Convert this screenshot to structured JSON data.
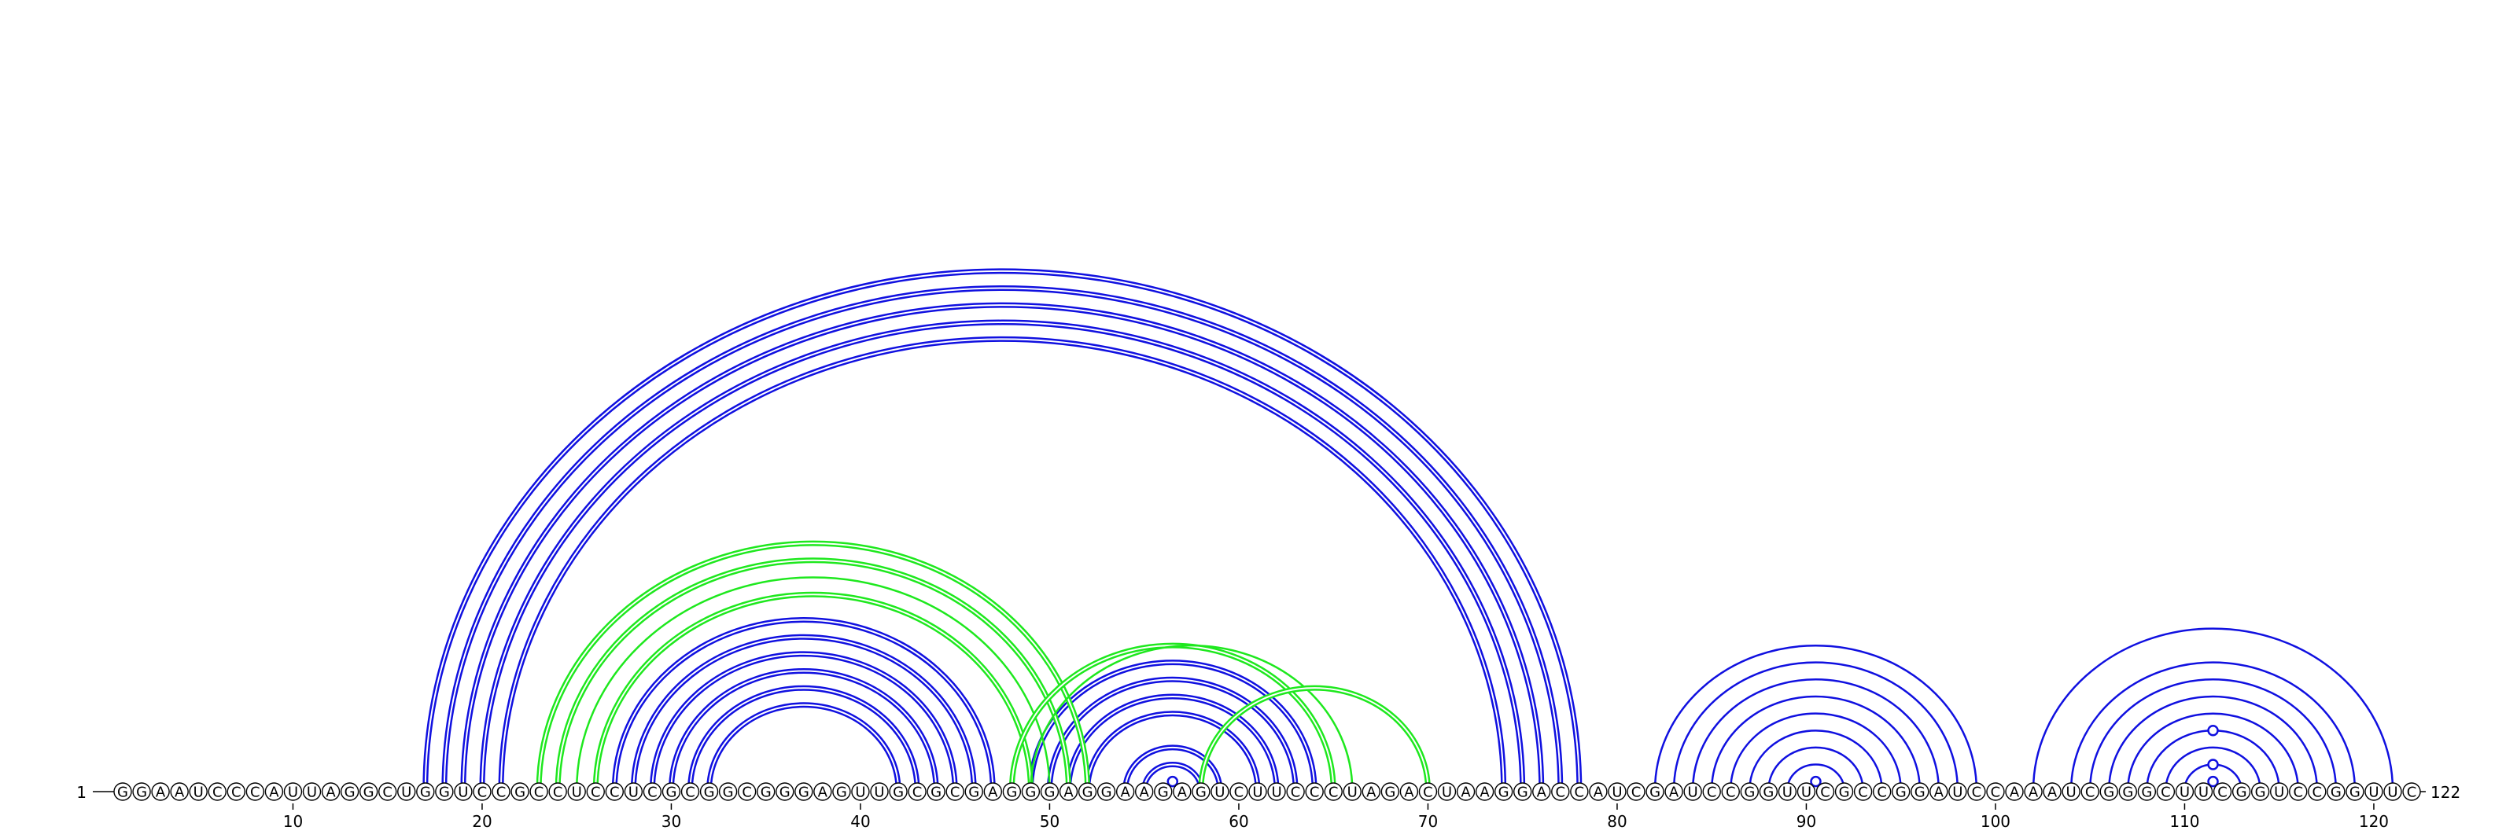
{
  "chart_data": {
    "type": "arc-diagram",
    "sequence": "GGAAUCCCAUUAGGCUGGUCCGCCUCCUCGCGGCGGGAGUUGCGCGAGGGAGGAAGAGUCUUCCCUAGACUAAGGACCAUCGAUCCGGUUCGCCGGAUCCAAAUCGGGCUUCGGUCCGGUUC",
    "start_label": "1",
    "end_label": "122",
    "tick_labels": [
      "10",
      "20",
      "30",
      "40",
      "50",
      "60",
      "70",
      "80",
      "90",
      "100",
      "110",
      "120"
    ],
    "tick_positions": [
      10,
      20,
      30,
      40,
      50,
      60,
      70,
      80,
      90,
      100,
      110,
      120
    ],
    "colors": {
      "backbone": "#000000",
      "structure_a": "#1010e0",
      "structure_b": "#1ee81e",
      "nucleotide_fill": "#ffffff"
    },
    "pair_groups": [
      {
        "color": "structure_a",
        "double": true,
        "pairs": [
          [
            17,
            78
          ],
          [
            18,
            77
          ],
          [
            19,
            76
          ],
          [
            20,
            75
          ],
          [
            21,
            74
          ]
        ]
      },
      {
        "color": "structure_a",
        "double": true,
        "pairs": [
          [
            27,
            47
          ],
          [
            28,
            46
          ],
          [
            29,
            45
          ],
          [
            30,
            44
          ],
          [
            31,
            43
          ],
          [
            32,
            42
          ]
        ]
      },
      {
        "color": "structure_a",
        "double": true,
        "pairs": [
          [
            49,
            64
          ],
          [
            50,
            63
          ],
          [
            51,
            62
          ],
          [
            52,
            61
          ]
        ]
      },
      {
        "color": "structure_a",
        "double": true,
        "pairs": [
          [
            54,
            59
          ],
          [
            55,
            58
          ]
        ]
      },
      {
        "color": "structure_b",
        "double": true,
        "pairs": [
          [
            23,
            52
          ],
          [
            24,
            51
          ],
          [
            26,
            49
          ]
        ]
      },
      {
        "color": "structure_b",
        "double": false,
        "pairs": [
          [
            25,
            50
          ]
        ]
      },
      {
        "color": "structure_b",
        "double": true,
        "pairs": [
          [
            48,
            65
          ]
        ]
      },
      {
        "color": "structure_b",
        "double": false,
        "pairs": [
          [
            49,
            66
          ]
        ]
      },
      {
        "color": "structure_b",
        "double": true,
        "pairs": [
          [
            58,
            70
          ]
        ]
      },
      {
        "color": "structure_a",
        "double": false,
        "pairs": [
          [
            82,
            99
          ],
          [
            83,
            98
          ],
          [
            84,
            97
          ],
          [
            85,
            96
          ],
          [
            86,
            95
          ],
          [
            87,
            94
          ],
          [
            88,
            93
          ],
          [
            89,
            92
          ]
        ]
      },
      {
        "color": "structure_a",
        "double": false,
        "pairs": [
          [
            102,
            121
          ],
          [
            104,
            119
          ],
          [
            105,
            118
          ],
          [
            106,
            117
          ],
          [
            107,
            116
          ],
          [
            108,
            115
          ],
          [
            109,
            114
          ],
          [
            110,
            113
          ]
        ]
      }
    ],
    "unpaired_markers": [
      {
        "position": 56.5,
        "level": 0.5,
        "color": "structure_a"
      },
      {
        "position": 90.5,
        "level": 0.5,
        "color": "structure_a"
      },
      {
        "position": 111.5,
        "level": 0.5,
        "color": "structure_a"
      },
      {
        "position": 111.5,
        "level": 1.5,
        "color": "structure_a"
      },
      {
        "position": 111.5,
        "level": 3.5,
        "color": "structure_a"
      }
    ]
  }
}
